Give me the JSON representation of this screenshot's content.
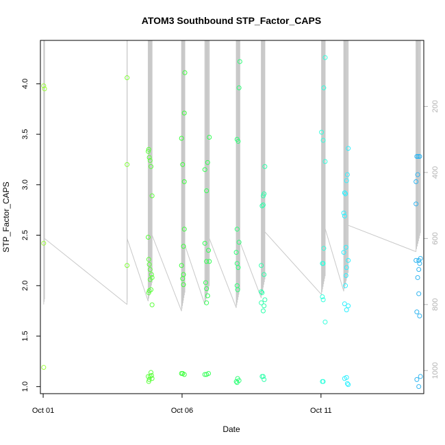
{
  "chart_data": {
    "type": "scatter",
    "title": "ATOM3 Southbound STP_Factor_CAPS",
    "xlabel": "Date",
    "ylabel": "STP_Factor_CAPS",
    "xlim": [
      -0.1,
      13.7
    ],
    "ylim": [
      0.93,
      4.43
    ],
    "x_ticks": [
      {
        "value": 0,
        "label": "Oct 01"
      },
      {
        "value": 5,
        "label": "Oct 06"
      },
      {
        "value": 10,
        "label": "Oct 11"
      }
    ],
    "y_ticks": [
      1.0,
      1.5,
      2.0,
      2.5,
      3.0,
      3.5,
      4.0
    ],
    "right_axis": {
      "ticks": [
        200,
        400,
        600,
        800,
        1000
      ],
      "range": [
        0,
        1070
      ],
      "inverted": true,
      "color": "#b3b3b3"
    },
    "line_color": "#c8c8c8",
    "grid": false,
    "marker": "open-circle",
    "x_unit": "days since Oct 01",
    "series": [
      {
        "color": "#9cff3a",
        "points": [
          [
            0.02,
            3.98
          ],
          [
            0.05,
            3.95
          ],
          [
            0.02,
            2.42
          ],
          [
            0.02,
            1.19
          ]
        ]
      },
      {
        "color": "#7dff33",
        "points": [
          [
            3.02,
            4.06
          ],
          [
            3.02,
            3.2
          ],
          [
            3.02,
            2.2
          ]
        ]
      },
      {
        "color": "#5aff3a",
        "points": [
          [
            3.78,
            3.33
          ],
          [
            3.8,
            3.35
          ],
          [
            3.82,
            3.27
          ],
          [
            3.85,
            3.24
          ],
          [
            3.88,
            3.18
          ],
          [
            3.92,
            2.89
          ],
          [
            3.78,
            2.48
          ],
          [
            3.8,
            2.26
          ],
          [
            3.82,
            2.21
          ],
          [
            3.85,
            2.16
          ],
          [
            3.9,
            2.11
          ],
          [
            3.85,
            2.06
          ],
          [
            3.92,
            2.08
          ],
          [
            3.82,
            1.95
          ],
          [
            3.88,
            1.96
          ],
          [
            3.8,
            1.93
          ],
          [
            3.92,
            1.81
          ],
          [
            3.78,
            1.1
          ],
          [
            3.8,
            1.05
          ],
          [
            3.82,
            1.07
          ],
          [
            3.85,
            1.1
          ],
          [
            3.88,
            1.14
          ],
          [
            3.9,
            1.11
          ],
          [
            3.92,
            1.08
          ]
        ]
      },
      {
        "color": "#3cff3c",
        "points": [
          [
            5.1,
            4.11
          ],
          [
            5.08,
            3.71
          ],
          [
            4.98,
            3.46
          ],
          [
            5.02,
            3.2
          ],
          [
            5.08,
            3.03
          ],
          [
            5.08,
            2.56
          ],
          [
            5.05,
            2.39
          ],
          [
            4.98,
            2.2
          ],
          [
            5.05,
            2.11
          ],
          [
            5.02,
            2.07
          ],
          [
            5.05,
            2.01
          ],
          [
            4.98,
            1.13
          ],
          [
            5.02,
            1.13
          ],
          [
            5.08,
            1.12
          ]
        ]
      },
      {
        "color": "#33ff55",
        "points": [
          [
            5.98,
            3.47
          ],
          [
            5.92,
            3.22
          ],
          [
            5.82,
            3.15
          ],
          [
            5.88,
            2.94
          ],
          [
            5.82,
            2.42
          ],
          [
            5.95,
            2.35
          ],
          [
            5.88,
            2.24
          ],
          [
            5.98,
            2.24
          ],
          [
            5.85,
            2.03
          ],
          [
            5.88,
            1.97
          ],
          [
            5.92,
            1.9
          ],
          [
            5.88,
            1.83
          ],
          [
            5.82,
            1.12
          ],
          [
            5.88,
            1.12
          ],
          [
            5.95,
            1.13
          ]
        ]
      },
      {
        "color": "#2eff77",
        "points": [
          [
            7.08,
            4.22
          ],
          [
            7.05,
            3.96
          ],
          [
            6.98,
            3.45
          ],
          [
            7.02,
            3.43
          ],
          [
            6.98,
            2.56
          ],
          [
            7.05,
            2.43
          ],
          [
            6.95,
            2.33
          ],
          [
            6.98,
            2.22
          ],
          [
            7.02,
            2.18
          ],
          [
            6.98,
            2.0
          ],
          [
            7.0,
            1.96
          ],
          [
            6.95,
            1.05
          ],
          [
            6.98,
            1.04
          ],
          [
            7.05,
            1.06
          ],
          [
            7.0,
            1.08
          ]
        ]
      },
      {
        "color": "#2effaa",
        "points": [
          [
            7.98,
            3.18
          ],
          [
            7.95,
            2.91
          ],
          [
            7.92,
            2.89
          ],
          [
            7.92,
            2.8
          ],
          [
            7.88,
            2.79
          ],
          [
            7.85,
            2.2
          ],
          [
            7.95,
            2.11
          ],
          [
            7.85,
            1.94
          ],
          [
            7.88,
            1.93
          ],
          [
            7.98,
            1.86
          ],
          [
            7.85,
            1.83
          ],
          [
            7.95,
            1.8
          ],
          [
            7.92,
            1.75
          ],
          [
            7.88,
            1.1
          ],
          [
            7.92,
            1.1
          ],
          [
            7.95,
            1.07
          ]
        ]
      },
      {
        "color": "#33ffdd",
        "points": [
          [
            10.15,
            4.26
          ],
          [
            10.1,
            3.96
          ],
          [
            10.02,
            3.52
          ],
          [
            10.08,
            3.44
          ],
          [
            10.15,
            3.23
          ],
          [
            10.1,
            2.37
          ],
          [
            10.05,
            2.22
          ],
          [
            10.08,
            2.22
          ],
          [
            10.05,
            1.89
          ],
          [
            10.08,
            1.86
          ],
          [
            10.15,
            1.64
          ],
          [
            10.05,
            1.05
          ],
          [
            10.08,
            1.05
          ]
        ]
      },
      {
        "color": "#2ef0ff",
        "points": [
          [
            10.98,
            3.36
          ],
          [
            10.95,
            3.1
          ],
          [
            10.92,
            3.04
          ],
          [
            10.85,
            2.92
          ],
          [
            10.88,
            2.91
          ],
          [
            10.82,
            2.72
          ],
          [
            10.85,
            2.69
          ],
          [
            10.9,
            2.38
          ],
          [
            10.82,
            2.33
          ],
          [
            10.98,
            2.25
          ],
          [
            10.92,
            2.18
          ],
          [
            10.9,
            2.1
          ],
          [
            10.88,
            2.0
          ],
          [
            10.85,
            1.82
          ],
          [
            10.98,
            1.8
          ],
          [
            10.92,
            1.76
          ],
          [
            10.85,
            1.08
          ],
          [
            10.92,
            1.09
          ],
          [
            10.95,
            1.03
          ],
          [
            10.98,
            1.02
          ]
        ]
      },
      {
        "color": "#2eb4f0",
        "points": [
          [
            13.45,
            3.28
          ],
          [
            13.5,
            3.28
          ],
          [
            13.55,
            3.28
          ],
          [
            13.48,
            3.1
          ],
          [
            13.42,
            3.03
          ],
          [
            13.42,
            2.81
          ],
          [
            13.58,
            2.27
          ],
          [
            13.52,
            2.25
          ],
          [
            13.42,
            2.25
          ],
          [
            13.55,
            2.22
          ],
          [
            13.52,
            2.16
          ],
          [
            13.48,
            2.08
          ],
          [
            13.52,
            1.92
          ],
          [
            13.45,
            1.74
          ],
          [
            13.55,
            1.7
          ],
          [
            13.45,
            1.07
          ],
          [
            13.58,
            1.1
          ],
          [
            13.52,
            1.0
          ]
        ]
      }
    ]
  }
}
